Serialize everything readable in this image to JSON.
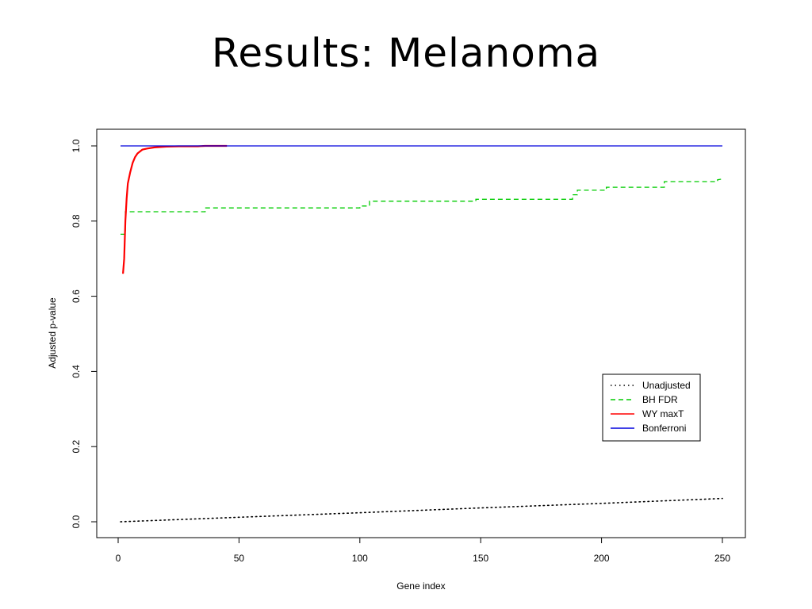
{
  "slide": {
    "title": "Results:  Melanoma"
  },
  "chart_data": {
    "type": "line",
    "title": "",
    "xlabel": "Gene index",
    "ylabel": "Adjusted p-value",
    "xlim": [
      0,
      250
    ],
    "ylim": [
      0,
      1.0
    ],
    "xticks": [
      0,
      50,
      100,
      150,
      200,
      250
    ],
    "xtick_labels": [
      "0",
      "50",
      "100",
      "150",
      "200",
      "250"
    ],
    "yticks": [
      0.0,
      0.2,
      0.4,
      0.6,
      0.8,
      1.0
    ],
    "ytick_labels": [
      "0.0",
      "0.2",
      "0.4",
      "0.6",
      "0.8",
      "1.0"
    ],
    "grid": false,
    "legend_position": "right",
    "series": [
      {
        "name": "Unadjusted",
        "color": "#000000",
        "style": "dotted",
        "x": [
          1,
          50,
          100,
          150,
          200,
          250
        ],
        "y": [
          0.0,
          0.012,
          0.024,
          0.037,
          0.049,
          0.062
        ]
      },
      {
        "name": "BH FDR",
        "color": "#00cc00",
        "style": "dashed",
        "x": [
          1,
          3,
          3,
          36,
          36,
          100,
          100,
          104,
          104,
          148,
          148,
          188,
          188,
          190,
          190,
          202,
          202,
          226,
          226,
          248,
          248,
          250
        ],
        "y": [
          0.765,
          0.765,
          0.825,
          0.825,
          0.835,
          0.835,
          0.84,
          0.84,
          0.853,
          0.853,
          0.858,
          0.858,
          0.87,
          0.87,
          0.882,
          0.882,
          0.89,
          0.89,
          0.905,
          0.905,
          0.91,
          0.912
        ]
      },
      {
        "name": "WY maxT",
        "color": "#ff0000",
        "style": "solid",
        "x": [
          2,
          2.5,
          3,
          3.5,
          4,
          5,
          6,
          7,
          8,
          9,
          10,
          12,
          15,
          20,
          25,
          30,
          33,
          36,
          40,
          45
        ],
        "y": [
          0.66,
          0.7,
          0.8,
          0.86,
          0.9,
          0.93,
          0.955,
          0.97,
          0.98,
          0.985,
          0.99,
          0.993,
          0.996,
          0.998,
          0.999,
          0.999,
          0.999,
          1.0,
          1.0,
          1.0
        ]
      },
      {
        "name": "Bonferroni",
        "color": "#0000dd",
        "style": "solid",
        "x": [
          1,
          250
        ],
        "y": [
          1.0,
          1.0
        ]
      }
    ]
  }
}
